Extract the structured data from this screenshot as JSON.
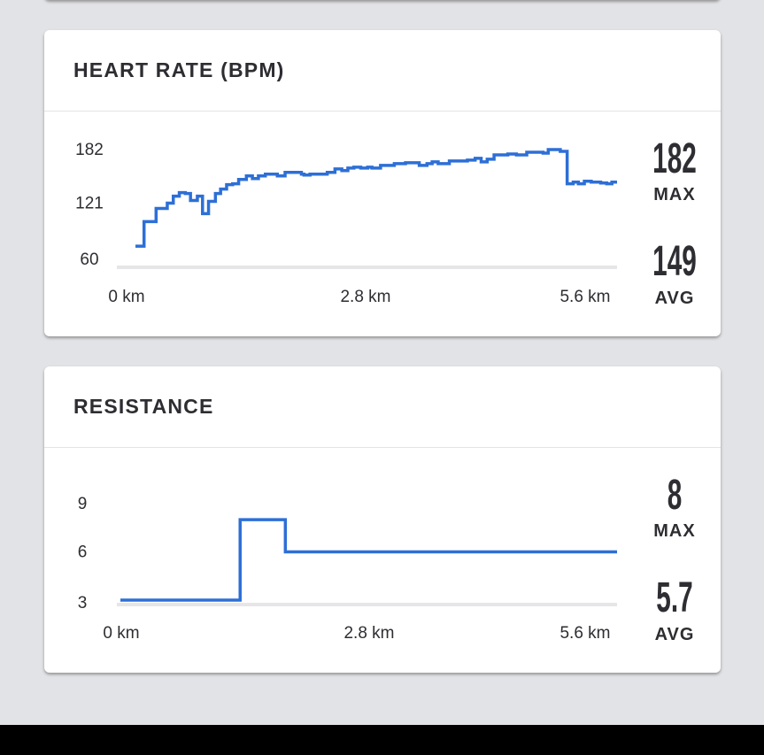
{
  "colors": {
    "line": "#2d6fd6",
    "grid": "#e6e6e8",
    "background": "#e2e3e6",
    "text": "#2d2d32"
  },
  "heart_rate": {
    "title": "HEART RATE (BPM)",
    "max_value": "182",
    "max_label": "MAX",
    "avg_value": "149",
    "avg_label": "AVG",
    "chart_data": {
      "type": "line",
      "step": true,
      "y_ticks": [
        "60",
        "121",
        "182"
      ],
      "ylim": [
        60,
        182
      ],
      "x_ticks": [
        "0 km",
        "2.8 km",
        "5.6 km"
      ],
      "xlim": [
        0,
        5.6
      ],
      "points": [
        [
          0,
          72
        ],
        [
          0.1,
          100
        ],
        [
          0.24,
          115
        ],
        [
          0.37,
          121
        ],
        [
          0.44,
          129
        ],
        [
          0.51,
          133
        ],
        [
          0.58,
          132
        ],
        [
          0.64,
          124
        ],
        [
          0.72,
          129
        ],
        [
          0.78,
          109
        ],
        [
          0.85,
          123
        ],
        [
          0.93,
          132
        ],
        [
          0.99,
          137
        ],
        [
          1.06,
          142
        ],
        [
          1.13,
          143
        ],
        [
          1.2,
          148
        ],
        [
          1.29,
          152
        ],
        [
          1.36,
          149
        ],
        [
          1.43,
          152
        ],
        [
          1.51,
          154
        ],
        [
          1.59,
          154
        ],
        [
          1.65,
          152
        ],
        [
          1.74,
          156
        ],
        [
          1.93,
          154
        ],
        [
          1.96,
          153
        ],
        [
          2.03,
          154
        ],
        [
          2.23,
          156
        ],
        [
          2.32,
          160
        ],
        [
          2.4,
          158
        ],
        [
          2.47,
          161
        ],
        [
          2.54,
          162
        ],
        [
          2.62,
          161
        ],
        [
          2.7,
          162
        ],
        [
          2.75,
          161
        ],
        [
          2.85,
          164
        ],
        [
          3.01,
          166
        ],
        [
          3.14,
          167
        ],
        [
          3.3,
          164
        ],
        [
          3.39,
          166
        ],
        [
          3.45,
          168
        ],
        [
          3.52,
          166
        ],
        [
          3.65,
          169
        ],
        [
          3.86,
          170
        ],
        [
          3.95,
          172
        ],
        [
          4.02,
          168
        ],
        [
          4.09,
          171
        ],
        [
          4.17,
          176
        ],
        [
          4.33,
          177
        ],
        [
          4.43,
          176
        ],
        [
          4.55,
          179
        ],
        [
          4.74,
          178
        ],
        [
          4.8,
          182
        ],
        [
          4.88,
          182
        ],
        [
          4.94,
          180
        ],
        [
          5.02,
          143
        ],
        [
          5.09,
          145
        ],
        [
          5.15,
          143
        ],
        [
          5.22,
          146
        ],
        [
          5.3,
          145
        ],
        [
          5.41,
          144
        ],
        [
          5.48,
          143
        ],
        [
          5.54,
          145
        ],
        [
          5.6,
          145
        ]
      ]
    }
  },
  "resistance": {
    "title": "RESISTANCE",
    "max_value": "8",
    "max_label": "MAX",
    "avg_value": "5.7",
    "avg_label": "AVG",
    "chart_data": {
      "type": "line",
      "step": true,
      "y_ticks": [
        "3",
        "6",
        "9"
      ],
      "ylim": [
        3,
        9
      ],
      "x_ticks": [
        "0 km",
        "2.8 km",
        "5.6 km"
      ],
      "xlim": [
        0,
        5.6
      ],
      "points": [
        [
          0,
          3
        ],
        [
          1.35,
          8
        ],
        [
          1.86,
          6
        ],
        [
          5.6,
          6
        ]
      ]
    }
  }
}
